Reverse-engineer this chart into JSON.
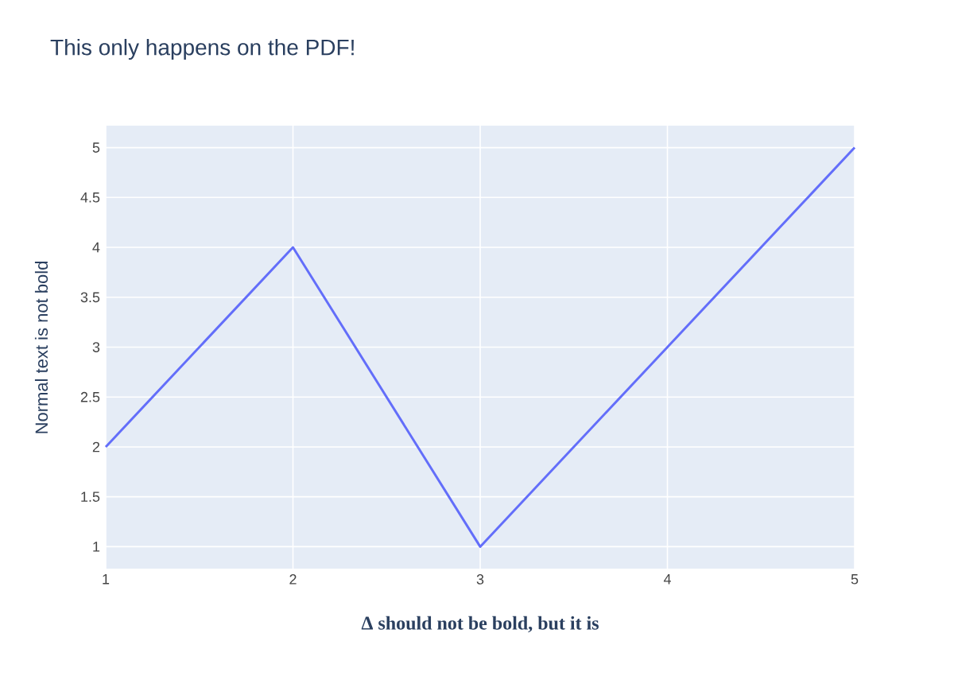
{
  "chart_data": {
    "type": "line",
    "title": "This only happens on the PDF!",
    "xlabel": "Δ should not be bold, but it is",
    "ylabel": "Normal text is not bold",
    "x": [
      1,
      2,
      3,
      4,
      5
    ],
    "series": [
      {
        "color": "#636efa",
        "values": [
          2,
          4,
          1,
          3,
          5
        ]
      }
    ],
    "xlim": [
      1,
      5
    ],
    "ylim": [
      0.78,
      5.22
    ],
    "xticks": [
      1,
      2,
      3,
      4,
      5
    ],
    "yticks": [
      1,
      1.5,
      2,
      2.5,
      3,
      3.5,
      4,
      4.5,
      5
    ],
    "grid": true,
    "marker": "none",
    "line_style": "solid"
  }
}
